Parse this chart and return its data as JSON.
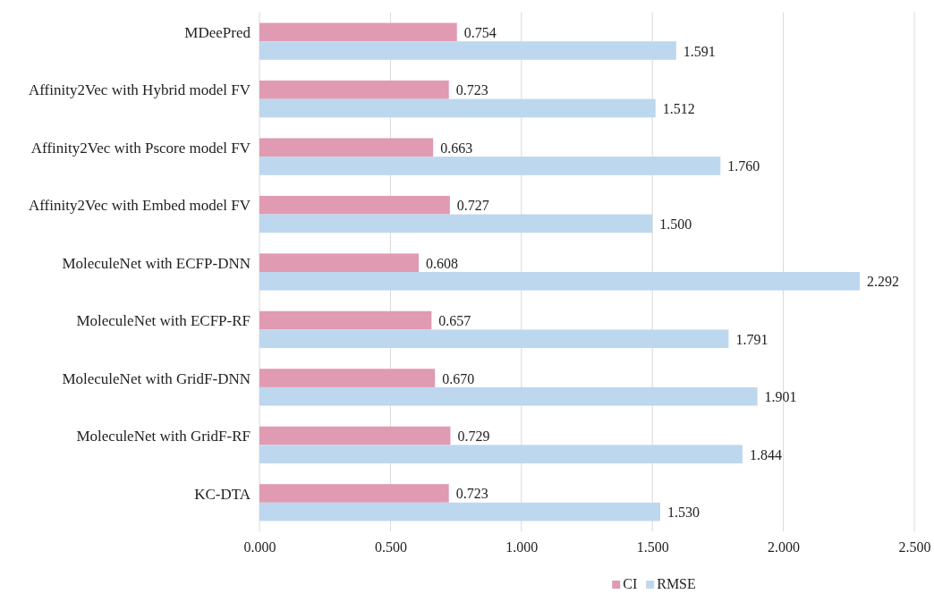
{
  "chart_data": {
    "type": "bar",
    "orientation": "horizontal",
    "categories": [
      "MDeePred",
      "Affinity2Vec with Hybrid model FV",
      "Affinity2Vec with Pscore model FV",
      "Affinity2Vec with Embed model FV",
      "MoleculeNet with ECFP-DNN",
      "MoleculeNet with ECFP-RF",
      "MoleculeNet with GridF-DNN",
      "MoleculeNet with GridF-RF",
      "KC-DTA"
    ],
    "series": [
      {
        "name": "CI",
        "color": "#e09ab2",
        "values": [
          0.754,
          0.723,
          0.663,
          0.727,
          0.608,
          0.657,
          0.67,
          0.729,
          0.723
        ],
        "value_labels": [
          "0.754",
          "0.723",
          "0.663",
          "0.727",
          "0.608",
          "0.657",
          "0.670",
          "0.729",
          "0.723"
        ]
      },
      {
        "name": "RMSE",
        "color": "#bdd7ee",
        "values": [
          1.591,
          1.512,
          1.76,
          1.5,
          2.292,
          1.791,
          1.901,
          1.844,
          1.53
        ],
        "value_labels": [
          "1.591",
          "1.512",
          "1.760",
          "1.500",
          "2.292",
          "1.791",
          "1.901",
          "1.844",
          "1.530"
        ]
      }
    ],
    "xlim": [
      0,
      2.5
    ],
    "xticks": [
      {
        "value": 0,
        "label": "0.000"
      },
      {
        "value": 0.5,
        "label": "0.500"
      },
      {
        "value": 1,
        "label": "1.000"
      },
      {
        "value": 1.5,
        "label": "1.500"
      },
      {
        "value": 2,
        "label": "2.000"
      },
      {
        "value": 2.5,
        "label": "2.500"
      }
    ],
    "grid": "x",
    "legend": "bottom"
  }
}
